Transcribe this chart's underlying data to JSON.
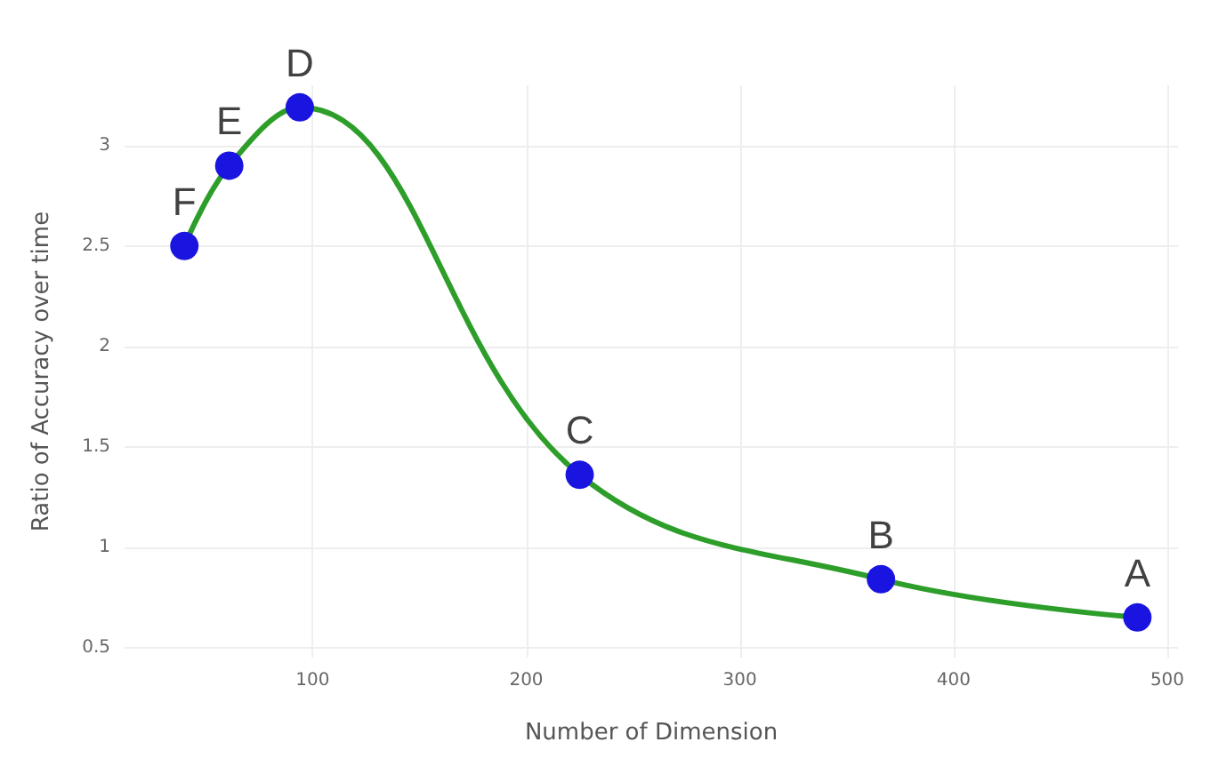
{
  "chart_data": {
    "type": "line",
    "xlabel": "Number of Dimension",
    "ylabel": "Ratio of Accuracy over time",
    "x": [
      40,
      61,
      94,
      225,
      366,
      486
    ],
    "series": [
      {
        "color": "#2e9e2a",
        "values": [
          2.5,
          2.9,
          3.19,
          1.36,
          0.84,
          0.65
        ]
      }
    ],
    "marker": "circle",
    "xlim": [
      12,
      505
    ],
    "xticks": [
      100,
      200,
      300,
      400,
      500
    ],
    "ylim": [
      0.45,
      3.3
    ],
    "yticks": [
      0.5,
      1,
      1.5,
      2,
      2.5,
      3
    ],
    "grid": true,
    "annotations": [
      {
        "text": "F",
        "x": 40,
        "y": 2.5
      },
      {
        "text": "E",
        "x": 61,
        "y": 2.9
      },
      {
        "text": "D",
        "x": 94,
        "y": 3.19
      },
      {
        "text": "C",
        "x": 225,
        "y": 1.36
      },
      {
        "text": "B",
        "x": 366,
        "y": 0.84
      },
      {
        "text": "A",
        "x": 486,
        "y": 0.65
      }
    ]
  }
}
